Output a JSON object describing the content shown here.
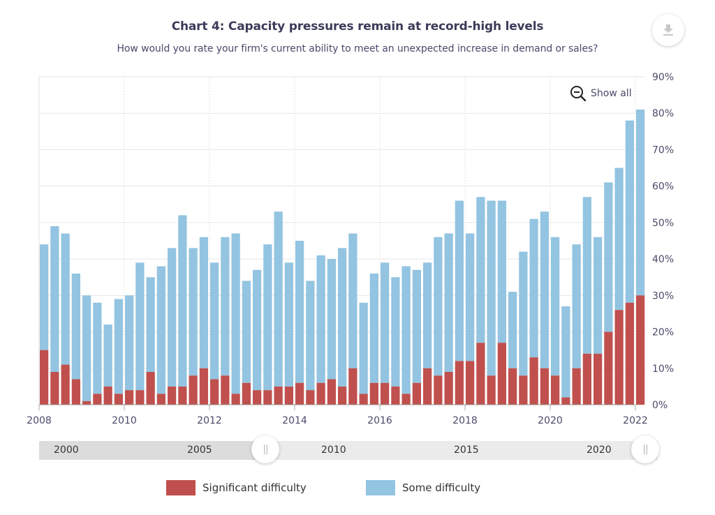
{
  "header": {
    "title": "Chart 4: Capacity pressures remain at record-high levels",
    "subtitle": "How would you rate your firm's current ability to meet an unexpected increase in demand or sales?"
  },
  "toolbar": {
    "download_icon": "download-icon",
    "show_all_label": "Show all",
    "show_all_icon": "zoom-out-icon"
  },
  "navigator": {
    "labels": [
      "2000",
      "2005",
      "2010",
      "2015",
      "2020"
    ],
    "handle_glyph": "||",
    "range_start": "2008",
    "range_end": "2022"
  },
  "legend": {
    "items": [
      {
        "label": "Significant difficulty",
        "color": "#c0504d"
      },
      {
        "label": "Some difficulty",
        "color": "#93c4e1"
      }
    ]
  },
  "chart_data": {
    "type": "bar",
    "stacked": true,
    "title": "Chart 4: Capacity pressures remain at record-high levels",
    "subtitle": "How would you rate your firm's current ability to meet an unexpected increase in demand or sales?",
    "xlabel": "",
    "ylabel": "",
    "y_axis_position": "right",
    "ylim": [
      0,
      90
    ],
    "y_ticks": [
      "0%",
      "10%",
      "20%",
      "30%",
      "40%",
      "50%",
      "60%",
      "70%",
      "80%",
      "90%"
    ],
    "x_ticks": [
      "2008",
      "2010",
      "2012",
      "2014",
      "2016",
      "2018",
      "2020",
      "2022"
    ],
    "x_range": [
      "2008",
      "2022"
    ],
    "frequency": "quarterly",
    "start": "2008 Q1",
    "grid": true,
    "legend_position": "bottom",
    "series": [
      {
        "name": "Significant difficulty",
        "color": "#c0504d",
        "values": [
          15,
          9,
          11,
          7,
          1,
          3,
          5,
          3,
          4,
          4,
          9,
          3,
          5,
          5,
          8,
          10,
          7,
          8,
          3,
          6,
          4,
          4,
          5,
          5,
          6,
          4,
          6,
          7,
          5,
          10,
          3,
          6,
          6,
          5,
          3,
          6,
          10,
          8,
          9,
          12,
          12,
          17,
          8,
          17,
          10,
          8,
          13,
          10,
          8,
          2,
          10,
          14,
          14,
          20,
          26,
          28,
          30
        ]
      },
      {
        "name": "Some difficulty",
        "color": "#93c4e1",
        "totals": [
          44,
          49,
          47,
          36,
          30,
          28,
          22,
          29,
          30,
          39,
          35,
          38,
          43,
          52,
          43,
          46,
          39,
          46,
          47,
          34,
          37,
          44,
          53,
          39,
          45,
          34,
          41,
          40,
          43,
          47,
          28,
          36,
          39,
          35,
          38,
          37,
          39,
          46,
          47,
          56,
          47,
          57,
          56,
          56,
          31,
          42,
          51,
          53,
          46,
          27,
          44,
          57,
          46,
          61,
          65,
          78,
          81
        ],
        "values": [
          29,
          40,
          36,
          29,
          29,
          25,
          17,
          26,
          26,
          35,
          26,
          35,
          38,
          47,
          35,
          36,
          32,
          38,
          44,
          28,
          33,
          40,
          48,
          34,
          39,
          30,
          35,
          33,
          38,
          37,
          25,
          30,
          33,
          30,
          35,
          31,
          29,
          38,
          38,
          44,
          35,
          40,
          48,
          39,
          21,
          34,
          38,
          43,
          38,
          25,
          34,
          43,
          32,
          41,
          39,
          50,
          51
        ]
      }
    ]
  }
}
